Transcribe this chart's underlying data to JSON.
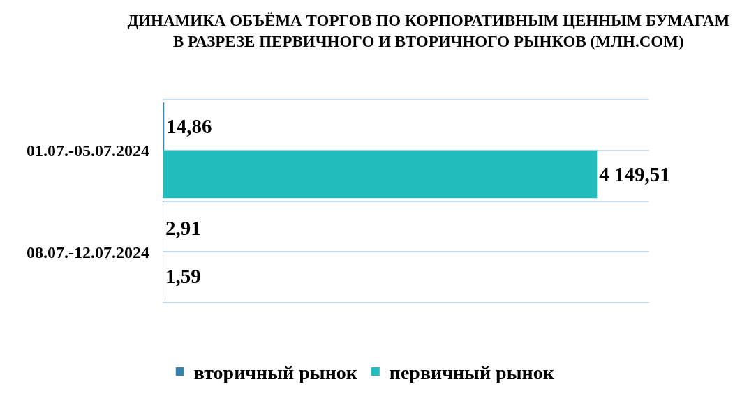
{
  "chart_data": {
    "type": "bar",
    "orientation": "horizontal",
    "title": "ДИНАМИКА ОБЪЁМА ТОРГОВ ПО КОРПОРАТИВНЫМ ЦЕННЫМ БУМАГАМ\nВ РАЗРЕЗЕ ПЕРВИЧНОГО И ВТОРИЧНОГО РЫНКОВ (МЛН.СОМ)",
    "categories": [
      "01.07.-05.07.2024",
      "08.07.-12.07.2024"
    ],
    "series": [
      {
        "name": "вторичный рынок",
        "color": "#3a80ad",
        "values": [
          14.86,
          2.91
        ],
        "value_labels": [
          "14,86",
          "2,91"
        ]
      },
      {
        "name": "первичный рынок",
        "color": "#22bcbc",
        "values": [
          4149.51,
          1.59
        ],
        "value_labels": [
          "4 149,51",
          "1,59"
        ]
      }
    ],
    "grid": "y",
    "legend": "bottom",
    "tick_labels": "y"
  }
}
